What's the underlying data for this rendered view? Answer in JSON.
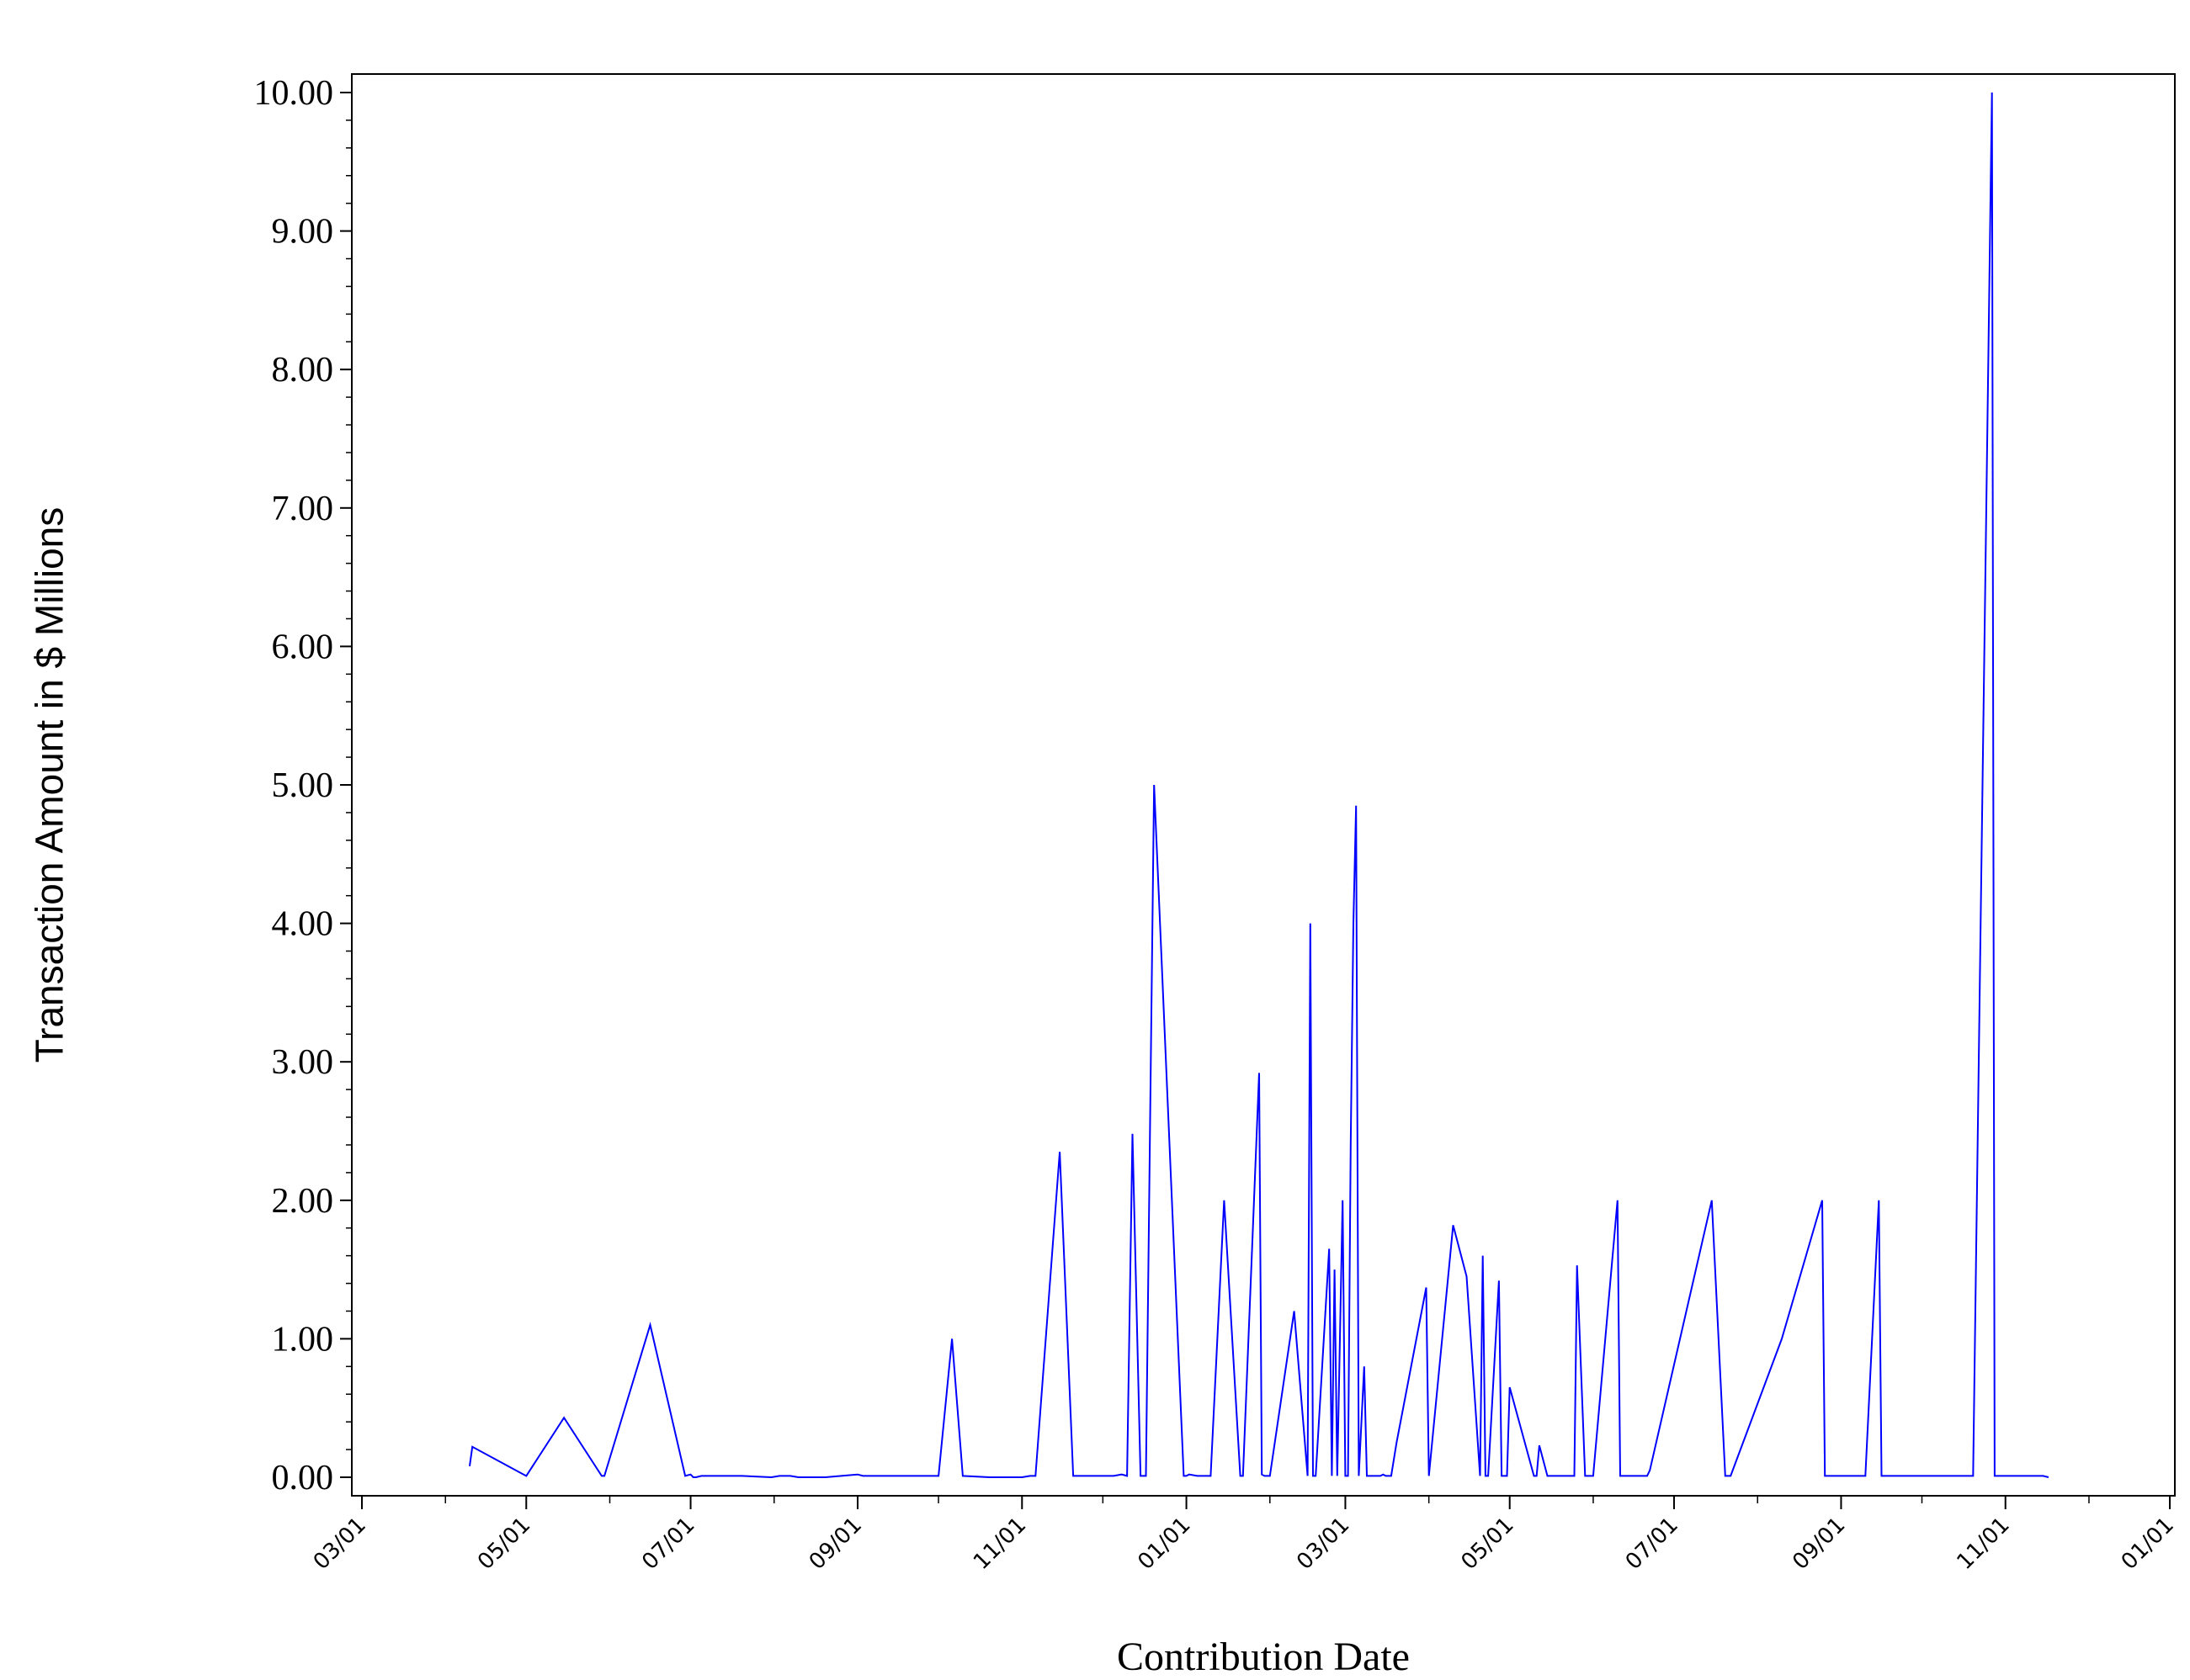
{
  "chart_data": {
    "type": "line",
    "title": "",
    "xlabel": "Contribution Date",
    "ylabel": "Transaction Amount in $ Millions",
    "ylim": [
      0,
      10
    ],
    "xlim": [
      "03/01 (yr 1)",
      "01/01 (yr 3)"
    ],
    "yticks": [
      "0.00",
      "1.00",
      "2.00",
      "3.00",
      "4.00",
      "5.00",
      "6.00",
      "7.00",
      "8.00",
      "9.00",
      "10.00"
    ],
    "xticks": [
      "03/01",
      "05/01",
      "07/01",
      "09/01",
      "11/01",
      "01/01",
      "03/01",
      "05/01",
      "07/01",
      "09/01",
      "11/01",
      "01/01"
    ],
    "grid": false,
    "line_color": "#0000ff",
    "series": [
      {
        "x": [
          "04/10",
          "04/11",
          "04/30",
          "05/01",
          "05/15",
          "05/29",
          "05/30",
          "06/16",
          "06/29",
          "07/01",
          "07/02",
          "07/03",
          "07/05",
          "07/10",
          "07/20",
          "07/31",
          "08/03",
          "08/07",
          "08/10",
          "08/15",
          "08/20",
          "09/01",
          "09/03",
          "10/01",
          "10/06",
          "10/10",
          "10/20",
          "11/01",
          "11/04",
          "11/06",
          "11/15",
          "11/20",
          "12/05",
          "12/08",
          "12/10",
          "12/12",
          "12/15",
          "12/16",
          "12/17",
          "12/20",
          "12/31",
          "01/01",
          "01/02",
          "01/05",
          "01/10",
          "01/15",
          "01/21",
          "01/22",
          "01/28",
          "01/29",
          "01/30",
          "02/01",
          "02/10",
          "02/15",
          "02/16",
          "02/17",
          "02/18",
          "02/23",
          "02/24",
          "02/25",
          "02/26",
          "02/28",
          "03/01",
          "03/02",
          "03/03",
          "03/04",
          "03/05",
          "03/06",
          "03/08",
          "03/09",
          "03/13",
          "03/14",
          "03/15",
          "03/16",
          "03/17",
          "03/18",
          "03/20",
          "03/31",
          "04/01",
          "04/10",
          "04/15",
          "04/20",
          "04/21",
          "04/22",
          "04/23",
          "04/27",
          "04/28",
          "04/29",
          "04/30",
          "05/01",
          "05/10",
          "05/11",
          "05/12",
          "05/15",
          "05/20",
          "05/25",
          "05/26",
          "05/29",
          "05/31",
          "06/01",
          "06/10",
          "06/11",
          "06/15",
          "06/21",
          "06/22",
          "07/15",
          "07/20",
          "07/21",
          "07/22",
          "08/10",
          "08/25",
          "08/26",
          "08/27",
          "09/10",
          "09/15",
          "09/16",
          "09/17",
          "10/20",
          "10/27",
          "10/28",
          "10/29",
          "11/15",
          "11/17"
        ],
        "y": [
          0.08,
          0.22,
          0.02,
          0.01,
          0.43,
          0.01,
          0.01,
          1.1,
          0.01,
          0.02,
          0.0,
          0.0,
          0.01,
          0.01,
          0.01,
          0.0,
          0.01,
          0.01,
          0.0,
          0.0,
          0.0,
          0.02,
          0.01,
          0.01,
          1.0,
          0.01,
          0.0,
          0.0,
          0.01,
          0.01,
          2.35,
          0.01,
          0.01,
          0.02,
          0.01,
          2.48,
          0.01,
          0.01,
          0.01,
          5.0,
          0.01,
          0.01,
          0.02,
          0.01,
          0.01,
          2.0,
          0.01,
          0.01,
          2.92,
          0.02,
          0.01,
          0.01,
          1.2,
          0.01,
          4.0,
          0.01,
          0.01,
          1.65,
          0.01,
          1.5,
          0.01,
          2.0,
          0.01,
          0.01,
          2.4,
          4.0,
          4.85,
          0.01,
          0.8,
          0.01,
          0.01,
          0.01,
          0.02,
          0.01,
          0.01,
          0.01,
          0.25,
          1.37,
          0.01,
          1.82,
          1.45,
          0.01,
          1.6,
          0.01,
          0.01,
          1.42,
          0.01,
          0.01,
          0.01,
          0.65,
          0.01,
          0.01,
          0.23,
          0.01,
          0.01,
          0.01,
          1.53,
          0.01,
          0.01,
          0.01,
          2.0,
          0.01,
          0.01,
          0.01,
          0.05,
          2.0,
          0.01,
          0.01,
          0.01,
          1.0,
          2.0,
          0.01,
          0.01,
          0.01,
          2.0,
          0.01,
          0.01,
          0.01,
          10.0,
          0.01,
          0.01,
          0.01,
          0.0
        ]
      }
    ]
  }
}
